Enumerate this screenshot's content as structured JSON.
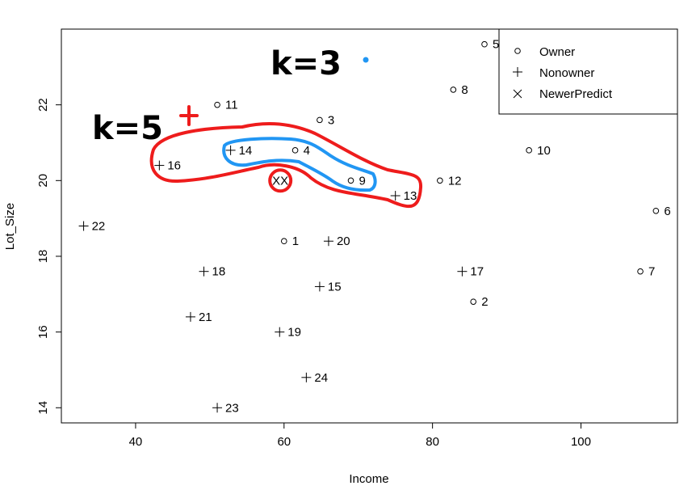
{
  "chart_data": {
    "type": "scatter",
    "title": "",
    "xlabel": "Income",
    "ylabel": "Lot_Size",
    "xlim": [
      30,
      113
    ],
    "ylim": [
      13.6,
      24.0
    ],
    "xticks": [
      40,
      60,
      80,
      100
    ],
    "yticks": [
      14,
      16,
      18,
      20,
      22
    ],
    "grid": false,
    "legend_position": "top-right",
    "legend": [
      {
        "label": "Owner",
        "symbol": "circle"
      },
      {
        "label": "Nonowner",
        "symbol": "plus"
      },
      {
        "label": "NewerPredict",
        "symbol": "cross"
      }
    ],
    "series": [
      {
        "name": "Owner",
        "symbol": "circle",
        "points": [
          {
            "x": 60.0,
            "y": 18.4,
            "label": "1"
          },
          {
            "x": 85.5,
            "y": 16.8,
            "label": "2"
          },
          {
            "x": 64.8,
            "y": 21.6,
            "label": "3"
          },
          {
            "x": 61.5,
            "y": 20.8,
            "label": "4"
          },
          {
            "x": 87.0,
            "y": 23.6,
            "label": "5"
          },
          {
            "x": 110.1,
            "y": 19.2,
            "label": "6"
          },
          {
            "x": 108.0,
            "y": 17.6,
            "label": "7"
          },
          {
            "x": 82.8,
            "y": 22.4,
            "label": "8"
          },
          {
            "x": 69.0,
            "y": 20.0,
            "label": "9"
          },
          {
            "x": 93.0,
            "y": 20.8,
            "label": "10"
          },
          {
            "x": 51.0,
            "y": 22.0,
            "label": "11"
          },
          {
            "x": 81.0,
            "y": 20.0,
            "label": "12"
          }
        ]
      },
      {
        "name": "Nonowner",
        "symbol": "plus",
        "points": [
          {
            "x": 75.0,
            "y": 19.6,
            "label": "13"
          },
          {
            "x": 52.8,
            "y": 20.8,
            "label": "14"
          },
          {
            "x": 64.8,
            "y": 17.2,
            "label": "15"
          },
          {
            "x": 43.2,
            "y": 20.4,
            "label": "16"
          },
          {
            "x": 84.0,
            "y": 17.6,
            "label": "17"
          },
          {
            "x": 49.2,
            "y": 17.6,
            "label": "18"
          },
          {
            "x": 59.4,
            "y": 16.0,
            "label": "19"
          },
          {
            "x": 66.0,
            "y": 18.4,
            "label": "20"
          },
          {
            "x": 47.4,
            "y": 16.4,
            "label": "21"
          },
          {
            "x": 33.0,
            "y": 18.8,
            "label": "22"
          },
          {
            "x": 51.0,
            "y": 14.0,
            "label": "23"
          },
          {
            "x": 63.0,
            "y": 14.8,
            "label": "24"
          }
        ]
      },
      {
        "name": "NewerPredict",
        "symbol": "cross",
        "points": [
          {
            "x": 59.5,
            "y": 20.0,
            "label": "XX"
          }
        ]
      }
    ],
    "annotations": [
      {
        "text": "k=3",
        "color": "#2196f3"
      },
      {
        "text": "k=5",
        "color": "#ee1c1c"
      }
    ]
  }
}
